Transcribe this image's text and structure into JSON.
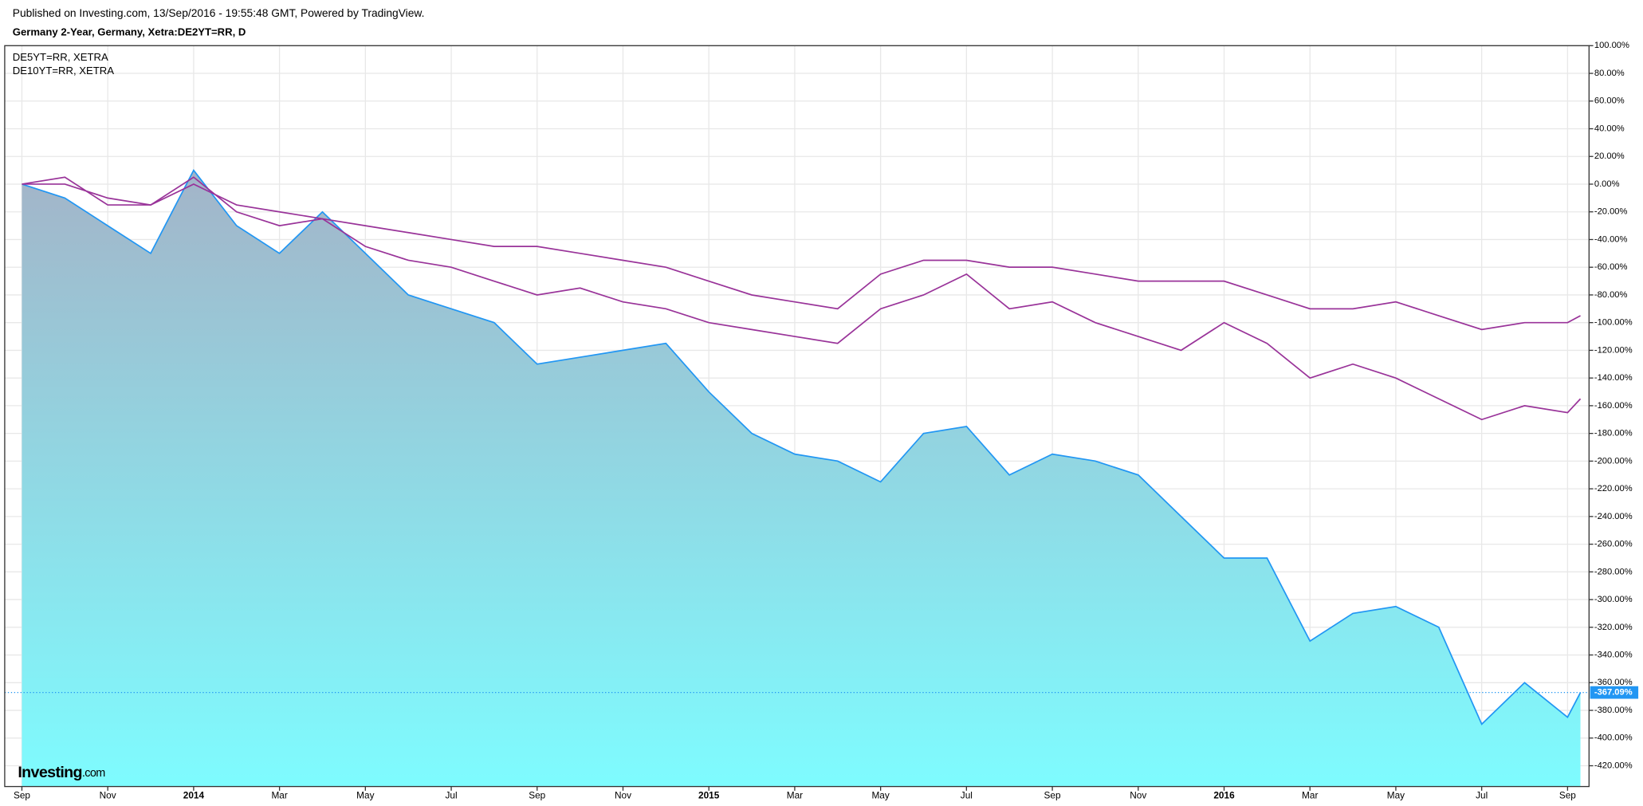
{
  "chart_data": {
    "type": "line",
    "header": "Published on Investing.com, 13/Sep/2016 - 19:55:48 GMT, Powered by TradingView.",
    "title": "Germany 2-Year, Germany, Xetra:DE2YT=RR, D",
    "logo": [
      "Investing",
      ".com"
    ],
    "x": [
      0,
      1,
      2,
      3,
      4,
      5,
      6,
      7,
      8,
      9,
      10,
      11,
      12,
      13,
      14,
      15,
      16,
      17,
      18,
      19,
      20,
      21,
      22,
      23,
      24,
      25,
      26,
      27,
      28,
      29,
      30,
      31,
      32,
      33,
      34,
      35,
      36,
      36.3
    ],
    "xlim": [
      -0.4,
      36.5
    ],
    "xticks": [
      {
        "value": 0,
        "label": "Sep"
      },
      {
        "value": 2,
        "label": "Nov"
      },
      {
        "value": 4,
        "label": "2014"
      },
      {
        "value": 6,
        "label": "Mar"
      },
      {
        "value": 8,
        "label": "May"
      },
      {
        "value": 10,
        "label": "Jul"
      },
      {
        "value": 12,
        "label": "Sep"
      },
      {
        "value": 14,
        "label": "Nov"
      },
      {
        "value": 16,
        "label": "2015"
      },
      {
        "value": 18,
        "label": "Mar"
      },
      {
        "value": 20,
        "label": "May"
      },
      {
        "value": 22,
        "label": "Jul"
      },
      {
        "value": 24,
        "label": "Sep"
      },
      {
        "value": 26,
        "label": "Nov"
      },
      {
        "value": 28,
        "label": "2016"
      },
      {
        "value": 30,
        "label": "Mar"
      },
      {
        "value": 32,
        "label": "May"
      },
      {
        "value": 34,
        "label": "Jul"
      },
      {
        "value": 36,
        "label": "Sep"
      }
    ],
    "ylim": [
      -435,
      100
    ],
    "yticks": [
      {
        "value": 100,
        "label": "100.00%"
      },
      {
        "value": 80,
        "label": "80.00%"
      },
      {
        "value": 60,
        "label": "60.00%"
      },
      {
        "value": 40,
        "label": "40.00%"
      },
      {
        "value": 20,
        "label": "20.00%"
      },
      {
        "value": 0,
        "label": "0.00%"
      },
      {
        "value": -20,
        "label": "-20.00%"
      },
      {
        "value": -40,
        "label": "-40.00%"
      },
      {
        "value": -60,
        "label": "-60.00%"
      },
      {
        "value": -80,
        "label": "-80.00%"
      },
      {
        "value": -100,
        "label": "-100.00%"
      },
      {
        "value": -120,
        "label": "-120.00%"
      },
      {
        "value": -140,
        "label": "-140.00%"
      },
      {
        "value": -160,
        "label": "-160.00%"
      },
      {
        "value": -180,
        "label": "-180.00%"
      },
      {
        "value": -200,
        "label": "-200.00%"
      },
      {
        "value": -220,
        "label": "-220.00%"
      },
      {
        "value": -240,
        "label": "-240.00%"
      },
      {
        "value": -260,
        "label": "-260.00%"
      },
      {
        "value": -280,
        "label": "-280.00%"
      },
      {
        "value": -300,
        "label": "-300.00%"
      },
      {
        "value": -320,
        "label": "-320.00%"
      },
      {
        "value": -340,
        "label": "-340.00%"
      },
      {
        "value": -360,
        "label": "-360.00%"
      },
      {
        "value": -380,
        "label": "-380.00%"
      },
      {
        "value": -400,
        "label": "-400.00%"
      },
      {
        "value": -420,
        "label": "-420.00%"
      }
    ],
    "grid": true,
    "series": [
      {
        "style": "area",
        "color": "#2196f3",
        "fill_top": "#a3b4c8",
        "fill_bottom": "#7efcff",
        "values": [
          0,
          -10,
          -30,
          -50,
          10,
          -30,
          -50,
          -20,
          -50,
          -80,
          -90,
          -100,
          -130,
          -125,
          -120,
          -115,
          -150,
          -180,
          -195,
          -200,
          -215,
          -180,
          -175,
          -210,
          -195,
          -200,
          -210,
          -240,
          -270,
          -270,
          -330,
          -310,
          -305,
          -320,
          -390,
          -360,
          -385,
          -367.09
        ]
      },
      {
        "name": "DE5YT=RR, XETRA",
        "style": "line",
        "color": "#993399",
        "values": [
          0,
          5,
          -15,
          -15,
          5,
          -20,
          -30,
          -25,
          -45,
          -55,
          -60,
          -70,
          -80,
          -75,
          -85,
          -90,
          -100,
          -105,
          -110,
          -115,
          -90,
          -80,
          -65,
          -90,
          -85,
          -100,
          -110,
          -120,
          -100,
          -115,
          -140,
          -130,
          -140,
          -155,
          -170,
          -160,
          -165,
          -155
        ]
      },
      {
        "name": "DE10YT=RR, XETRA",
        "style": "line",
        "color": "#993399",
        "values": [
          0,
          0,
          -10,
          -15,
          0,
          -15,
          -20,
          -25,
          -30,
          -35,
          -40,
          -45,
          -45,
          -50,
          -55,
          -60,
          -70,
          -80,
          -85,
          -90,
          -65,
          -55,
          -55,
          -60,
          -60,
          -65,
          -70,
          -70,
          -70,
          -80,
          -90,
          -90,
          -85,
          -95,
          -105,
          -100,
          -100,
          -95
        ]
      }
    ],
    "last_value": {
      "value": -367.09,
      "label": "-367.09%"
    }
  }
}
